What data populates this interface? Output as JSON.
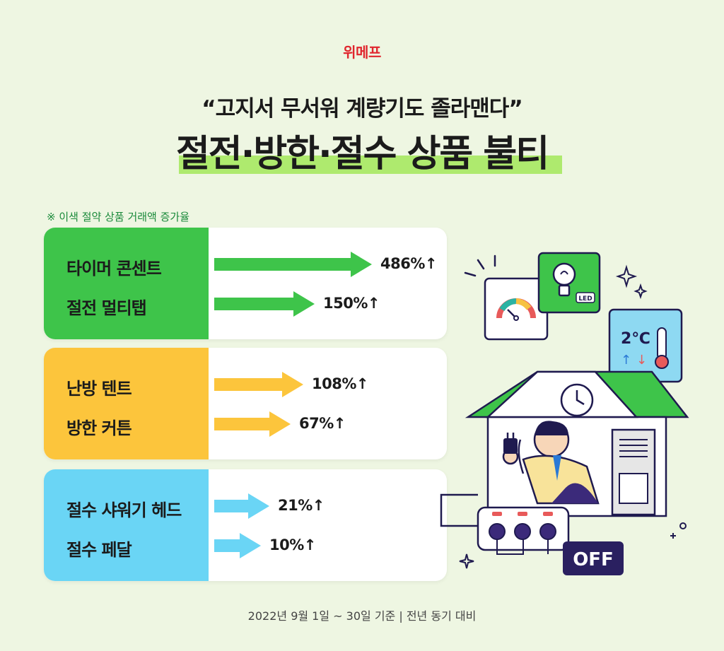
{
  "brand": "위메프",
  "subtitle": "“고지서 무서워 계량기도 졸라맨다”",
  "title": "절전·방한·절수 상품 불티",
  "note": "※ 이색 절약 상품 거래액 증가율",
  "footer": "2022년 9월 1일 ~ 30일 기준 | 전년 동기 대비",
  "colors": {
    "green": "#3ec44a",
    "yellow": "#fcc53c",
    "blue": "#6ad5f5",
    "title_highlight": "#aeea6e",
    "brand": "#e0262e"
  },
  "chart_data": {
    "type": "bar",
    "orientation": "horizontal",
    "unit": "%",
    "groups": [
      {
        "color": "#3ec44a",
        "items": [
          {
            "label": "타이머 콘센트",
            "value": 486,
            "display": "486%↑"
          },
          {
            "label": "절전 멀티탭",
            "value": 150,
            "display": "150%↑"
          }
        ]
      },
      {
        "color": "#fcc53c",
        "items": [
          {
            "label": "난방 텐트",
            "value": 108,
            "display": "108%↑"
          },
          {
            "label": "방한 커튼",
            "value": 67,
            "display": "67%↑"
          }
        ]
      },
      {
        "color": "#6ad5f5",
        "items": [
          {
            "label": "절수 샤워기 헤드",
            "value": 21,
            "display": "21%↑"
          },
          {
            "label": "절수 페달",
            "value": 10,
            "display": "10%↑"
          }
        ]
      }
    ]
  },
  "illustration": {
    "temperature": "2℃",
    "led": "LED",
    "off": "OFF",
    "up_arrow": "↑",
    "down_arrow": "↓"
  }
}
